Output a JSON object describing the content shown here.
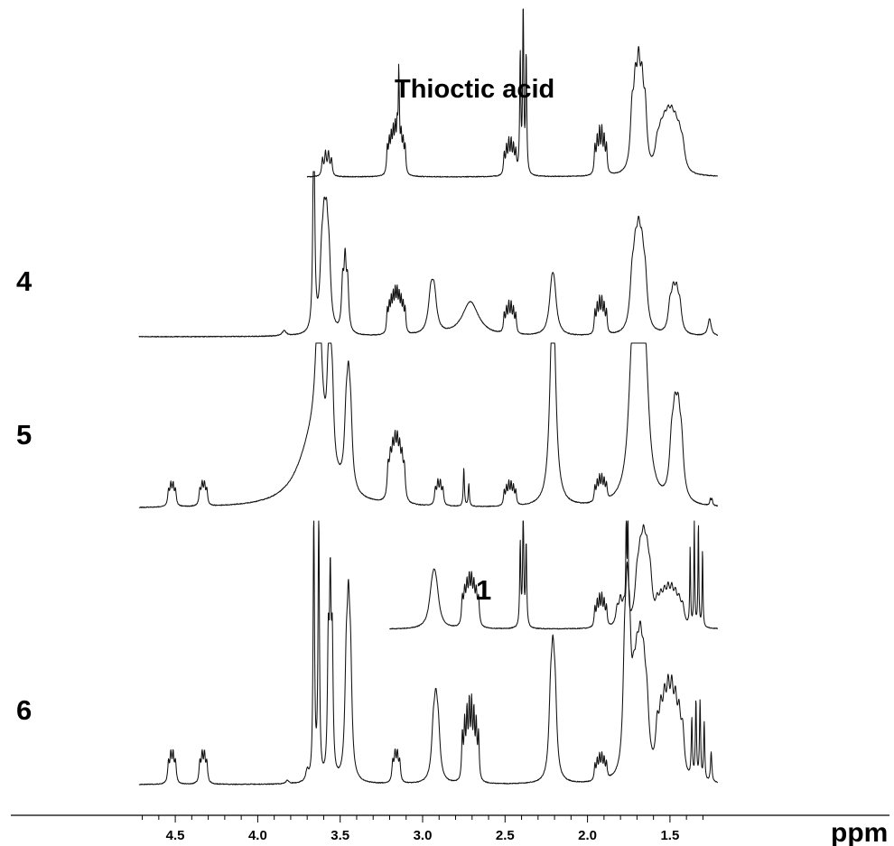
{
  "chart_data": {
    "type": "line",
    "title": "",
    "xlabel": "ppm",
    "ylabel": "",
    "x_reversed": true,
    "xlim": [
      4.72,
      1.21
    ],
    "grid": false,
    "legend": "none",
    "x_ticks": [
      {
        "value": 4.5,
        "label": "4.5"
      },
      {
        "value": 4.0,
        "label": "4.0"
      },
      {
        "value": 3.5,
        "label": "3.5"
      },
      {
        "value": 3.0,
        "label": "3.0"
      },
      {
        "value": 2.5,
        "label": "2.5"
      },
      {
        "value": 2.0,
        "label": "2.0"
      },
      {
        "value": 1.5,
        "label": "1.5"
      }
    ],
    "series": [
      {
        "name": "Thioctic acid",
        "x_range": [
          3.7,
          1.21
        ],
        "peaks": [
          {
            "ppm": 3.58,
            "height": 0.15,
            "mult": 4,
            "spacing": 0.018,
            "width": 0.006
          },
          {
            "ppm": 3.16,
            "height": 0.26,
            "mult": 10,
            "spacing": 0.012,
            "width": 0.005
          },
          {
            "ppm": 3.145,
            "height": 0.4,
            "mult": 1,
            "spacing": 0,
            "width": 0.003
          },
          {
            "ppm": 2.47,
            "height": 0.2,
            "mult": 6,
            "spacing": 0.014,
            "width": 0.005
          },
          {
            "ppm": 2.39,
            "height": 1.0,
            "mult": 3,
            "spacing": 0.018,
            "width": 0.004
          },
          {
            "ppm": 1.92,
            "height": 0.26,
            "mult": 6,
            "spacing": 0.014,
            "width": 0.005
          },
          {
            "ppm": 1.69,
            "height": 0.5,
            "mult": 5,
            "spacing": 0.02,
            "width": 0.012
          },
          {
            "ppm": 1.5,
            "height": 0.23,
            "mult": 8,
            "spacing": 0.022,
            "width": 0.016
          }
        ]
      },
      {
        "name": "4",
        "x_range": [
          4.72,
          1.21
        ],
        "peaks": [
          {
            "ppm": 3.84,
            "height": 0.03,
            "mult": 1,
            "spacing": 0,
            "width": 0.015
          },
          {
            "ppm": 3.66,
            "height": 1.4,
            "mult": 1,
            "spacing": 0,
            "width": 0.006
          },
          {
            "ppm": 3.59,
            "height": 0.5,
            "mult": 4,
            "spacing": 0.015,
            "width": 0.012
          },
          {
            "ppm": 3.47,
            "height": 0.38,
            "mult": 3,
            "spacing": 0.015,
            "width": 0.008
          },
          {
            "ppm": 3.16,
            "height": 0.22,
            "mult": 10,
            "spacing": 0.012,
            "width": 0.005
          },
          {
            "ppm": 2.94,
            "height": 0.27,
            "mult": 2,
            "spacing": 0.02,
            "width": 0.018
          },
          {
            "ppm": 2.71,
            "height": 0.2,
            "mult": 1,
            "spacing": 0,
            "width": 0.06
          },
          {
            "ppm": 2.47,
            "height": 0.17,
            "mult": 6,
            "spacing": 0.014,
            "width": 0.005
          },
          {
            "ppm": 2.21,
            "height": 0.28,
            "mult": 2,
            "spacing": 0.015,
            "width": 0.018
          },
          {
            "ppm": 1.92,
            "height": 0.2,
            "mult": 6,
            "spacing": 0.014,
            "width": 0.005
          },
          {
            "ppm": 1.69,
            "height": 0.4,
            "mult": 5,
            "spacing": 0.02,
            "width": 0.015
          },
          {
            "ppm": 1.47,
            "height": 0.22,
            "mult": 4,
            "spacing": 0.02,
            "width": 0.013
          },
          {
            "ppm": 1.26,
            "height": 0.1,
            "mult": 1,
            "spacing": 0,
            "width": 0.012
          }
        ]
      },
      {
        "name": "5",
        "x_range": [
          4.72,
          1.21
        ],
        "peaks": [
          {
            "ppm": 4.52,
            "height": 0.13,
            "mult": 4,
            "spacing": 0.014,
            "width": 0.006
          },
          {
            "ppm": 4.33,
            "height": 0.13,
            "mult": 4,
            "spacing": 0.014,
            "width": 0.006
          },
          {
            "ppm": 3.66,
            "height": 0.4,
            "mult": 1,
            "spacing": 0,
            "width": 0.11
          },
          {
            "ppm": 3.63,
            "height": 0.95,
            "mult": 1,
            "spacing": 0,
            "width": 0.02
          },
          {
            "ppm": 3.56,
            "height": 0.5,
            "mult": 3,
            "spacing": 0.013,
            "width": 0.01
          },
          {
            "ppm": 3.45,
            "height": 0.47,
            "mult": 3,
            "spacing": 0.014,
            "width": 0.012
          },
          {
            "ppm": 3.16,
            "height": 0.3,
            "mult": 8,
            "spacing": 0.014,
            "width": 0.007
          },
          {
            "ppm": 2.9,
            "height": 0.14,
            "mult": 4,
            "spacing": 0.015,
            "width": 0.006
          },
          {
            "ppm": 2.75,
            "height": 0.22,
            "mult": 1,
            "spacing": 0,
            "width": 0.004
          },
          {
            "ppm": 2.72,
            "height": 0.13,
            "mult": 1,
            "spacing": 0,
            "width": 0.004
          },
          {
            "ppm": 2.47,
            "height": 0.13,
            "mult": 6,
            "spacing": 0.014,
            "width": 0.005
          },
          {
            "ppm": 2.21,
            "height": 0.88,
            "mult": 2,
            "spacing": 0.012,
            "width": 0.018
          },
          {
            "ppm": 1.92,
            "height": 0.14,
            "mult": 6,
            "spacing": 0.014,
            "width": 0.005
          },
          {
            "ppm": 1.69,
            "height": 0.65,
            "mult": 5,
            "spacing": 0.022,
            "width": 0.025
          },
          {
            "ppm": 1.46,
            "height": 0.42,
            "mult": 4,
            "spacing": 0.02,
            "width": 0.015
          },
          {
            "ppm": 1.25,
            "height": 0.05,
            "mult": 2,
            "spacing": 0.01,
            "width": 0.004
          }
        ]
      },
      {
        "name": "1",
        "x_range": [
          3.2,
          1.21
        ],
        "peaks": [
          {
            "ppm": 2.93,
            "height": 0.27,
            "mult": 3,
            "spacing": 0.015,
            "width": 0.02
          },
          {
            "ppm": 2.71,
            "height": 0.37,
            "mult": 8,
            "spacing": 0.014,
            "width": 0.006
          },
          {
            "ppm": 2.39,
            "height": 1.0,
            "mult": 3,
            "spacing": 0.018,
            "width": 0.004
          },
          {
            "ppm": 1.92,
            "height": 0.26,
            "mult": 6,
            "spacing": 0.014,
            "width": 0.005
          },
          {
            "ppm": 1.8,
            "height": 0.2,
            "mult": 3,
            "spacing": 0.02,
            "width": 0.01
          },
          {
            "ppm": 1.76,
            "height": 1.2,
            "mult": 2,
            "spacing": 0.01,
            "width": 0.003
          },
          {
            "ppm": 1.66,
            "height": 0.5,
            "mult": 5,
            "spacing": 0.02,
            "width": 0.015
          },
          {
            "ppm": 1.5,
            "height": 0.25,
            "mult": 8,
            "spacing": 0.022,
            "width": 0.012
          },
          {
            "ppm": 1.34,
            "height": 1.0,
            "mult": 4,
            "spacing": 0.025,
            "width": 0.003
          }
        ]
      },
      {
        "name": "6",
        "x_range": [
          4.72,
          1.21
        ],
        "peaks": [
          {
            "ppm": 4.52,
            "height": 0.17,
            "mult": 4,
            "spacing": 0.014,
            "width": 0.006
          },
          {
            "ppm": 4.33,
            "height": 0.17,
            "mult": 4,
            "spacing": 0.014,
            "width": 0.006
          },
          {
            "ppm": 3.82,
            "height": 0.02,
            "mult": 1,
            "spacing": 0,
            "width": 0.01
          },
          {
            "ppm": 3.7,
            "height": 0.06,
            "mult": 1,
            "spacing": 0,
            "width": 0.01
          },
          {
            "ppm": 3.66,
            "height": 1.5,
            "mult": 1,
            "spacing": 0,
            "width": 0.005
          },
          {
            "ppm": 3.63,
            "height": 1.5,
            "mult": 1,
            "spacing": 0,
            "width": 0.005
          },
          {
            "ppm": 3.56,
            "height": 1.0,
            "mult": 3,
            "spacing": 0.012,
            "width": 0.006
          },
          {
            "ppm": 3.45,
            "height": 0.76,
            "mult": 3,
            "spacing": 0.013,
            "width": 0.01
          },
          {
            "ppm": 3.16,
            "height": 0.17,
            "mult": 4,
            "spacing": 0.014,
            "width": 0.006
          },
          {
            "ppm": 2.92,
            "height": 0.34,
            "mult": 3,
            "spacing": 0.015,
            "width": 0.013
          },
          {
            "ppm": 2.71,
            "height": 0.42,
            "mult": 8,
            "spacing": 0.014,
            "width": 0.005
          },
          {
            "ppm": 2.21,
            "height": 0.53,
            "mult": 3,
            "spacing": 0.014,
            "width": 0.012
          },
          {
            "ppm": 1.92,
            "height": 0.14,
            "mult": 6,
            "spacing": 0.014,
            "width": 0.005
          },
          {
            "ppm": 1.76,
            "height": 0.75,
            "mult": 3,
            "spacing": 0.015,
            "width": 0.012
          },
          {
            "ppm": 1.68,
            "height": 0.5,
            "mult": 5,
            "spacing": 0.02,
            "width": 0.015
          },
          {
            "ppm": 1.5,
            "height": 0.4,
            "mult": 8,
            "spacing": 0.022,
            "width": 0.012
          },
          {
            "ppm": 1.33,
            "height": 0.5,
            "mult": 4,
            "spacing": 0.025,
            "width": 0.004
          },
          {
            "ppm": 1.25,
            "height": 0.17,
            "mult": 1,
            "spacing": 0,
            "width": 0.005
          }
        ]
      }
    ]
  }
}
